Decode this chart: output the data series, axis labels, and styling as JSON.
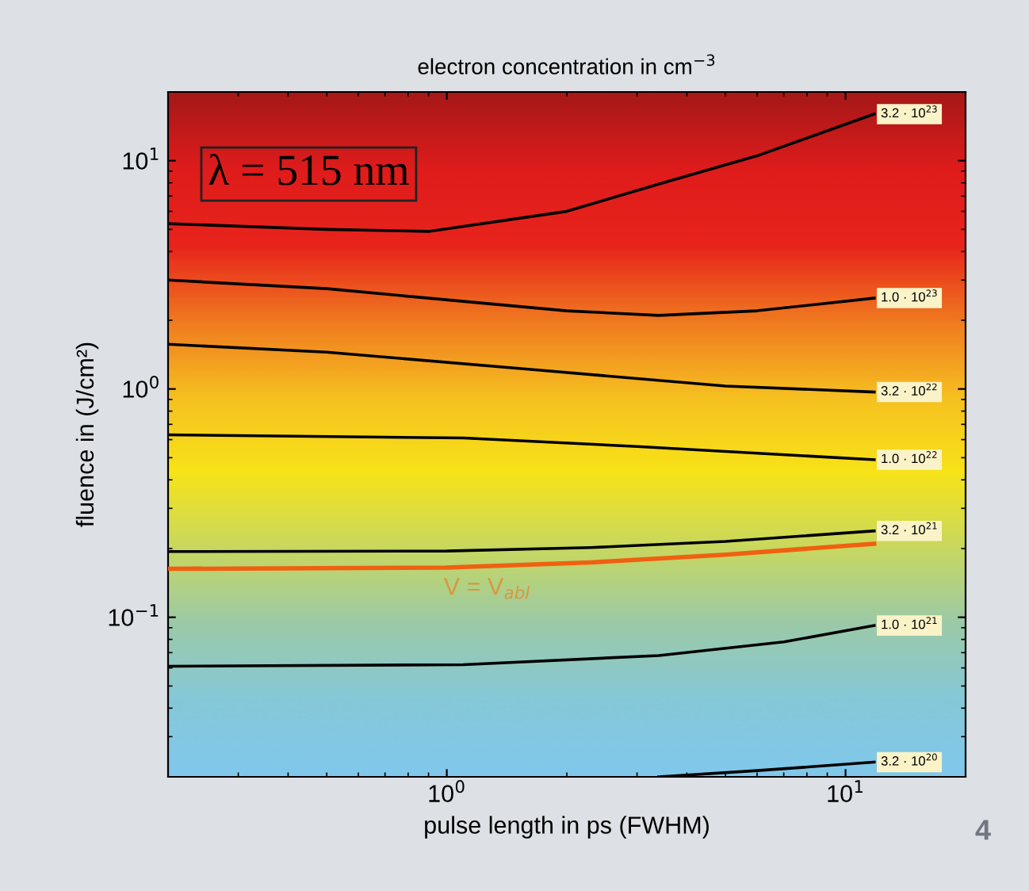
{
  "chart_data": {
    "type": "line",
    "title": "electron concentration in cm$^{−3}$",
    "xlabel": "pulse length in ps (FWHM)",
    "ylabel": "fluence in (J/cm²)",
    "log": "xy",
    "xlim": [
      0.2,
      20
    ],
    "ylim": [
      0.02,
      20
    ],
    "xticks": [
      {
        "value": 1,
        "label": "10$^{0}$"
      },
      {
        "value": 10,
        "label": "10$^{1}$"
      }
    ],
    "yticks": [
      {
        "value": 0.1,
        "label": "10$^{−1}$"
      },
      {
        "value": 1,
        "label": "10$^{0}$"
      },
      {
        "value": 10,
        "label": "10$^{1}$"
      }
    ],
    "grid": false,
    "legend": "right",
    "marker": "none",
    "line_style": "solid",
    "series": [
      {
        "name": "3.2 · 10$^{23}$",
        "color": "#000000",
        "x": [
          0.2,
          0.5,
          0.9,
          2,
          3.4,
          6,
          11.8
        ],
        "values": [
          5.3,
          5.0,
          4.9,
          6.0,
          7.9,
          10.5,
          16
        ]
      },
      {
        "name": "1.0 · 10$^{23}$",
        "color": "#000000",
        "x": [
          0.2,
          0.5,
          0.9,
          2,
          3.4,
          6,
          11.8
        ],
        "values": [
          3.0,
          2.75,
          2.5,
          2.2,
          2.1,
          2.2,
          2.5
        ]
      },
      {
        "name": "3.2 · 10$^{22}$",
        "color": "#000000",
        "x": [
          0.2,
          0.5,
          1.6,
          5,
          11.8
        ],
        "values": [
          1.57,
          1.45,
          1.22,
          1.03,
          0.97
        ]
      },
      {
        "name": "1.0 · 10$^{22}$",
        "color": "#000000",
        "x": [
          0.2,
          1.1,
          3,
          11.8
        ],
        "values": [
          0.63,
          0.61,
          0.56,
          0.49
        ]
      },
      {
        "name": "3.2 · 10$^{21}$",
        "color": "#000000",
        "x": [
          0.2,
          1,
          2.3,
          5,
          11.8
        ],
        "values": [
          0.194,
          0.195,
          0.202,
          0.215,
          0.239
        ]
      },
      {
        "color": "#f06010",
        "x": [
          0.2,
          1,
          2.3,
          5,
          11.8
        ],
        "values": [
          0.163,
          0.165,
          0.174,
          0.188,
          0.21
        ]
      },
      {
        "name": "1.0 · 10$^{21}$",
        "color": "#000000",
        "x": [
          0.2,
          1.1,
          3.4,
          7,
          11.8
        ],
        "values": [
          0.061,
          0.062,
          0.068,
          0.078,
          0.092
        ]
      },
      {
        "name": "3.2 · 10$^{20}$",
        "color": "#000000",
        "x": [
          3.4,
          6,
          11.8
        ],
        "values": [
          0.02,
          0.0213,
          0.0232
        ]
      }
    ],
    "annotations": [
      "V = V$_{abl}$",
      "λ = 515 nm",
      "4"
    ]
  }
}
